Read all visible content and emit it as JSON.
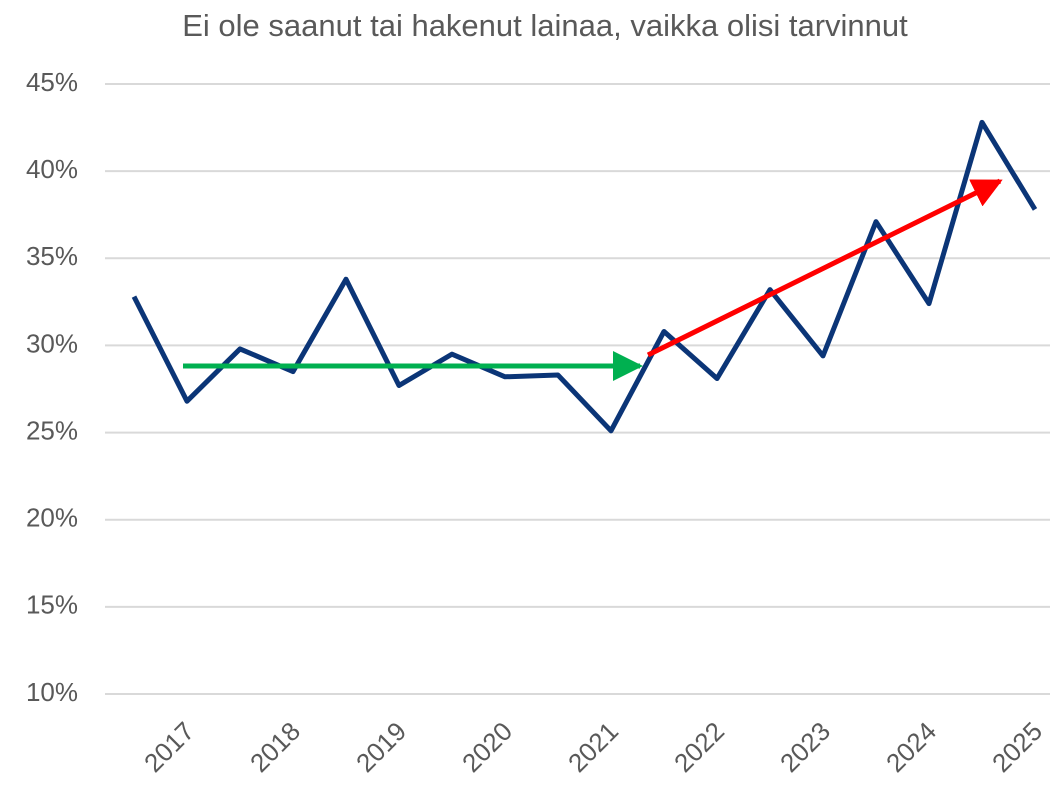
{
  "chart_data": {
    "type": "line",
    "title": "Ei ole saanut tai hakenut lainaa, vaikka olisi tarvinnut",
    "categories": [
      null,
      "2017",
      null,
      "2018",
      null,
      "2019",
      null,
      "2020",
      null,
      "2021",
      null,
      "2022",
      null,
      "2023",
      null,
      "2024",
      null,
      "2025"
    ],
    "series": [
      {
        "name": "Ei ole saanut tai hakenut lainaa, vaikka olisi tarvinnut",
        "color": "#0b3577",
        "values": [
          32.8,
          26.8,
          29.8,
          28.5,
          33.8,
          27.7,
          29.5,
          28.2,
          28.3,
          25.1,
          30.8,
          28.1,
          33.2,
          29.4,
          37.1,
          32.4,
          42.8,
          37.8
        ]
      }
    ],
    "ylim": [
      10,
      45
    ],
    "yticks": [
      {
        "value": 10,
        "label": "10%"
      },
      {
        "value": 15,
        "label": "15%"
      },
      {
        "value": 20,
        "label": "20%"
      },
      {
        "value": 25,
        "label": "25%"
      },
      {
        "value": 30,
        "label": "30%"
      },
      {
        "value": 35,
        "label": "35%"
      },
      {
        "value": 40,
        "label": "40%"
      },
      {
        "value": 45,
        "label": "45%"
      }
    ],
    "grid": true
  }
}
